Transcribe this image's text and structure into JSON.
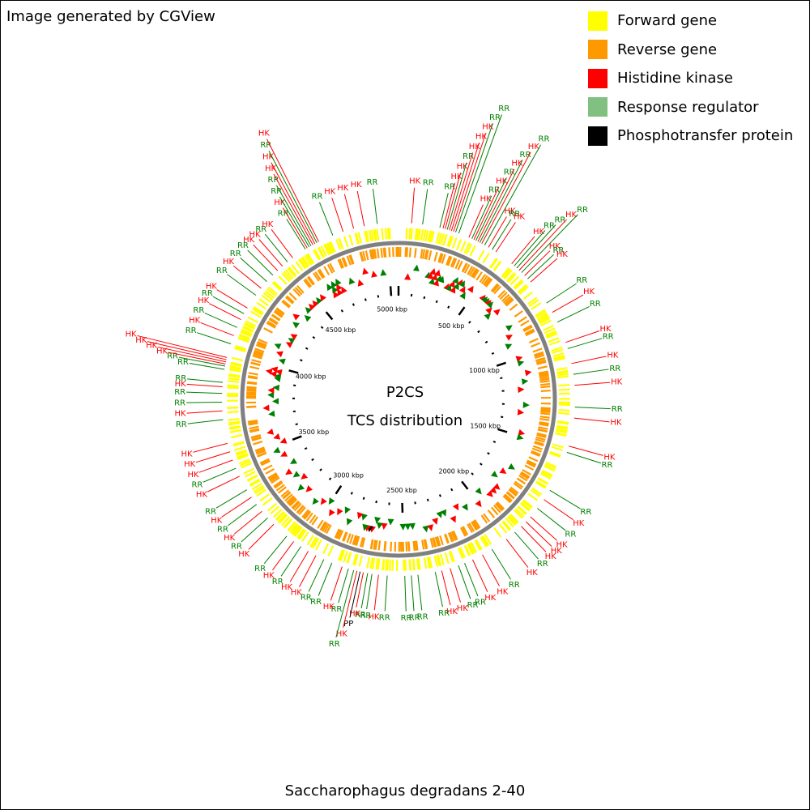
{
  "header": {
    "credit": "Image generated by CGView"
  },
  "footer": {
    "organism": "Saccharophagus degradans 2-40"
  },
  "legend": [
    {
      "label": "Forward gene",
      "color": "#ffff00"
    },
    {
      "label": "Reverse gene",
      "color": "#ff9900"
    },
    {
      "label": "Histidine kinase",
      "color": "#ff0000"
    },
    {
      "label": "Response regulator",
      "color": "#80c080"
    },
    {
      "label": "Phosphotransfer protein",
      "color": "#000000"
    }
  ],
  "center": {
    "title": "P2CS",
    "subtitle": "TCS distribution"
  },
  "colors": {
    "hk": "#ff0000",
    "rr_marker": "#008000",
    "rr_line": "#008000",
    "pp": "#000000",
    "forward": "#ffff00",
    "reverse": "#ff9900",
    "backbone": "#808080"
  },
  "genome": {
    "length_kbp": 5057,
    "tick_labels": [
      {
        "kbp": 500,
        "label": "500 kbp"
      },
      {
        "kbp": 1000,
        "label": "1000 kbp"
      },
      {
        "kbp": 1500,
        "label": "1500 kbp"
      },
      {
        "kbp": 2000,
        "label": "2000 kbp"
      },
      {
        "kbp": 2500,
        "label": "2500 kbp"
      },
      {
        "kbp": 3000,
        "label": "3000 kbp"
      },
      {
        "kbp": 3500,
        "label": "3500 kbp"
      },
      {
        "kbp": 4000,
        "label": "4000 kbp"
      },
      {
        "kbp": 4500,
        "label": "4500 kbp"
      },
      {
        "kbp": 5000,
        "label": "5000 kbp"
      }
    ]
  },
  "features": [
    {
      "kbp": 60,
      "type": "HK"
    },
    {
      "kbp": 110,
      "type": "RR"
    },
    {
      "kbp": 190,
      "type": "RR"
    },
    {
      "kbp": 205,
      "type": "HK"
    },
    {
      "kbp": 215,
      "type": "HK"
    },
    {
      "kbp": 225,
      "type": "RR"
    },
    {
      "kbp": 235,
      "type": "HK"
    },
    {
      "kbp": 245,
      "type": "HK"
    },
    {
      "kbp": 255,
      "type": "HK"
    },
    {
      "kbp": 265,
      "type": "RR"
    },
    {
      "kbp": 280,
      "type": "RR"
    },
    {
      "kbp": 330,
      "type": "HK"
    },
    {
      "kbp": 345,
      "type": "RR"
    },
    {
      "kbp": 355,
      "type": "HK"
    },
    {
      "kbp": 365,
      "type": "RR"
    },
    {
      "kbp": 375,
      "type": "HK"
    },
    {
      "kbp": 385,
      "type": "RR"
    },
    {
      "kbp": 395,
      "type": "HK"
    },
    {
      "kbp": 410,
      "type": "RR"
    },
    {
      "kbp": 430,
      "type": "HK"
    },
    {
      "kbp": 450,
      "type": "RR"
    },
    {
      "kbp": 470,
      "type": "HK"
    },
    {
      "kbp": 560,
      "type": "HK"
    },
    {
      "kbp": 575,
      "type": "RR"
    },
    {
      "kbp": 590,
      "type": "RR"
    },
    {
      "kbp": 605,
      "type": "HK"
    },
    {
      "kbp": 620,
      "type": "RR"
    },
    {
      "kbp": 640,
      "type": "HK"
    },
    {
      "kbp": 660,
      "type": "RR"
    },
    {
      "kbp": 680,
      "type": "HK"
    },
    {
      "kbp": 800,
      "type": "RR"
    },
    {
      "kbp": 850,
      "type": "HK"
    },
    {
      "kbp": 900,
      "type": "RR"
    },
    {
      "kbp": 1000,
      "type": "HK"
    },
    {
      "kbp": 1030,
      "type": "RR"
    },
    {
      "kbp": 1100,
      "type": "HK"
    },
    {
      "kbp": 1150,
      "type": "RR"
    },
    {
      "kbp": 1200,
      "type": "HK"
    },
    {
      "kbp": 1300,
      "type": "RR"
    },
    {
      "kbp": 1350,
      "type": "HK"
    },
    {
      "kbp": 1480,
      "type": "HK"
    },
    {
      "kbp": 1510,
      "type": "RR"
    },
    {
      "kbp": 1700,
      "type": "RR"
    },
    {
      "kbp": 1750,
      "type": "HK"
    },
    {
      "kbp": 1800,
      "type": "RR"
    },
    {
      "kbp": 1850,
      "type": "HK"
    },
    {
      "kbp": 1880,
      "type": "HK"
    },
    {
      "kbp": 1910,
      "type": "HK"
    },
    {
      "kbp": 1950,
      "type": "RR"
    },
    {
      "kbp": 2000,
      "type": "HK"
    },
    {
      "kbp": 2080,
      "type": "RR"
    },
    {
      "kbp": 2130,
      "type": "HK"
    },
    {
      "kbp": 2180,
      "type": "HK"
    },
    {
      "kbp": 2220,
      "type": "RR"
    },
    {
      "kbp": 2250,
      "type": "RR"
    },
    {
      "kbp": 2290,
      "type": "HK"
    },
    {
      "kbp": 2330,
      "type": "HK"
    },
    {
      "kbp": 2360,
      "type": "RR"
    },
    {
      "kbp": 2440,
      "type": "RR"
    },
    {
      "kbp": 2470,
      "type": "RR"
    },
    {
      "kbp": 2500,
      "type": "RR"
    },
    {
      "kbp": 2580,
      "type": "RR"
    },
    {
      "kbp": 2620,
      "type": "HK"
    },
    {
      "kbp": 2650,
      "type": "RR"
    },
    {
      "kbp": 2670,
      "type": "RR"
    },
    {
      "kbp": 2690,
      "type": "HK"
    },
    {
      "kbp": 2705,
      "type": "PP"
    },
    {
      "kbp": 2720,
      "type": "HK"
    },
    {
      "kbp": 2735,
      "type": "RR"
    },
    {
      "kbp": 2760,
      "type": "RR"
    },
    {
      "kbp": 2790,
      "type": "HK"
    },
    {
      "kbp": 2840,
      "type": "RR"
    },
    {
      "kbp": 2880,
      "type": "RR"
    },
    {
      "kbp": 2920,
      "type": "HK"
    },
    {
      "kbp": 2960,
      "type": "HK"
    },
    {
      "kbp": 3000,
      "type": "RR"
    },
    {
      "kbp": 3040,
      "type": "HK"
    },
    {
      "kbp": 3080,
      "type": "RR"
    },
    {
      "kbp": 3160,
      "type": "HK"
    },
    {
      "kbp": 3200,
      "type": "RR"
    },
    {
      "kbp": 3240,
      "type": "HK"
    },
    {
      "kbp": 3280,
      "type": "RR"
    },
    {
      "kbp": 3320,
      "type": "HK"
    },
    {
      "kbp": 3360,
      "type": "RR"
    },
    {
      "kbp": 3430,
      "type": "HK"
    },
    {
      "kbp": 3470,
      "type": "RR"
    },
    {
      "kbp": 3510,
      "type": "HK"
    },
    {
      "kbp": 3550,
      "type": "HK"
    },
    {
      "kbp": 3590,
      "type": "HK"
    },
    {
      "kbp": 3700,
      "type": "RR"
    },
    {
      "kbp": 3740,
      "type": "HK"
    },
    {
      "kbp": 3780,
      "type": "RR"
    },
    {
      "kbp": 3820,
      "type": "RR"
    },
    {
      "kbp": 3850,
      "type": "HK"
    },
    {
      "kbp": 3870,
      "type": "RR"
    },
    {
      "kbp": 3930,
      "type": "RR"
    },
    {
      "kbp": 3945,
      "type": "RR"
    },
    {
      "kbp": 3955,
      "type": "HK"
    },
    {
      "kbp": 3965,
      "type": "HK"
    },
    {
      "kbp": 3975,
      "type": "HK"
    },
    {
      "kbp": 3985,
      "type": "HK"
    },
    {
      "kbp": 4050,
      "type": "RR"
    },
    {
      "kbp": 4090,
      "type": "HK"
    },
    {
      "kbp": 4130,
      "type": "RR"
    },
    {
      "kbp": 4170,
      "type": "HK"
    },
    {
      "kbp": 4200,
      "type": "RR"
    },
    {
      "kbp": 4230,
      "type": "HK"
    },
    {
      "kbp": 4300,
      "type": "RR"
    },
    {
      "kbp": 4340,
      "type": "HK"
    },
    {
      "kbp": 4380,
      "type": "RR"
    },
    {
      "kbp": 4420,
      "type": "RR"
    },
    {
      "kbp": 4450,
      "type": "HK"
    },
    {
      "kbp": 4480,
      "type": "HK"
    },
    {
      "kbp": 4510,
      "type": "RR"
    },
    {
      "kbp": 4540,
      "type": "HK"
    },
    {
      "kbp": 4610,
      "type": "RR"
    },
    {
      "kbp": 4620,
      "type": "HK"
    },
    {
      "kbp": 4630,
      "type": "RR"
    },
    {
      "kbp": 4640,
      "type": "RR"
    },
    {
      "kbp": 4650,
      "type": "HK"
    },
    {
      "kbp": 4660,
      "type": "HK"
    },
    {
      "kbp": 4670,
      "type": "RR"
    },
    {
      "kbp": 4680,
      "type": "HK"
    },
    {
      "kbp": 4750,
      "type": "RR"
    },
    {
      "kbp": 4800,
      "type": "HK"
    },
    {
      "kbp": 4850,
      "type": "HK"
    },
    {
      "kbp": 4900,
      "type": "HK"
    },
    {
      "kbp": 4960,
      "type": "RR"
    }
  ]
}
